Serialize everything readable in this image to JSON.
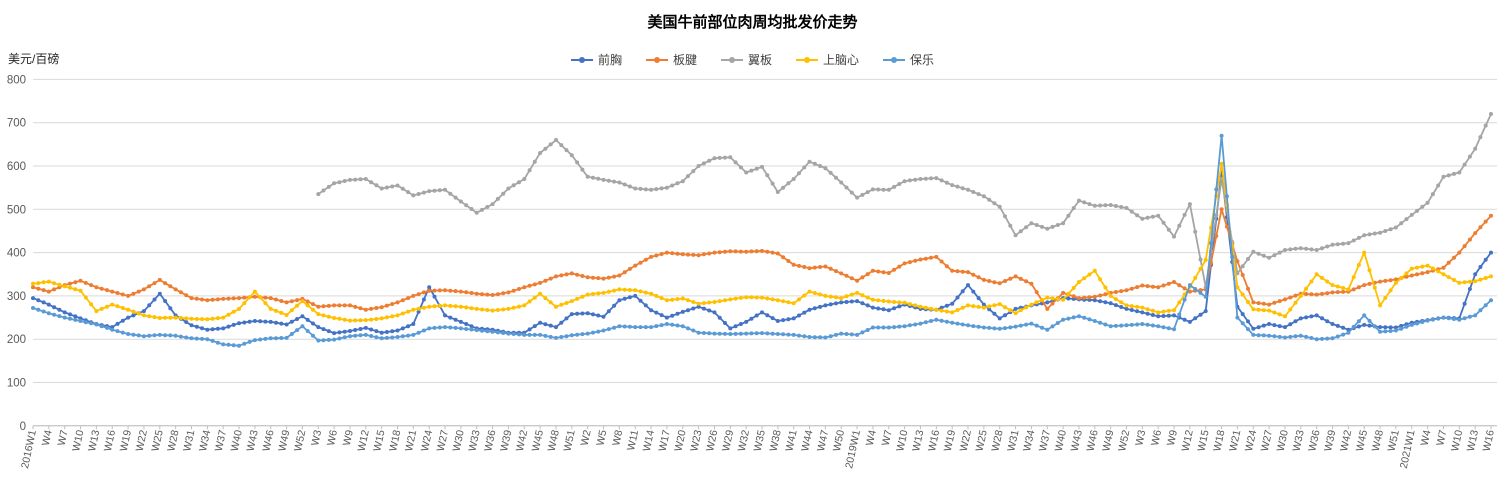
{
  "chart_data": {
    "type": "line",
    "title": "美国牛前部位肉周均批发价走势",
    "ylabel": "美元/百磅",
    "ylim": [
      0,
      800
    ],
    "yticks": [
      0,
      100,
      200,
      300,
      400,
      500,
      600,
      700,
      800
    ],
    "grid": "horizontal",
    "legend_position": "top-center",
    "categories": [
      "2016W1",
      "W4",
      "W7",
      "W10",
      "W13",
      "W16",
      "W19",
      "W22",
      "W25",
      "W28",
      "W31",
      "W34",
      "W37",
      "W40",
      "W43",
      "W46",
      "W49",
      "W52",
      "W3",
      "W6",
      "W9",
      "W12",
      "W15",
      "W18",
      "W21",
      "W24",
      "W27",
      "W30",
      "W33",
      "W36",
      "W39",
      "W42",
      "W45",
      "W48",
      "W51",
      "W2",
      "W5",
      "W8",
      "W11",
      "W14",
      "W17",
      "W20",
      "W23",
      "W26",
      "W29",
      "W32",
      "W35",
      "W38",
      "W41",
      "W44",
      "W47",
      "W50",
      "2019W1",
      "W4",
      "W7",
      "W10",
      "W13",
      "W16",
      "W19",
      "W22",
      "W25",
      "W28",
      "W31",
      "W34",
      "W37",
      "W40",
      "W43",
      "W46",
      "W49",
      "W52",
      "W3",
      "W6",
      "W9",
      "W12",
      "W15",
      "W18",
      "W21",
      "W24",
      "W27",
      "W30",
      "W33",
      "W36",
      "W39",
      "W42",
      "W45",
      "W48",
      "W51",
      "2021W1",
      "W4",
      "W7",
      "W10",
      "W13",
      "W16"
    ],
    "series": [
      {
        "name": "前胸",
        "color": "#4472C4",
        "values": [
          295,
          280,
          262,
          248,
          235,
          228,
          250,
          265,
          305,
          255,
          232,
          222,
          225,
          237,
          242,
          240,
          234,
          253,
          228,
          214,
          219,
          226,
          215,
          220,
          235,
          320,
          255,
          240,
          225,
          222,
          215,
          215,
          238,
          228,
          258,
          260,
          252,
          290,
          300,
          267,
          250,
          263,
          275,
          262,
          225,
          240,
          262,
          242,
          248,
          268,
          278,
          285,
          288,
          273,
          267,
          280,
          270,
          268,
          282,
          325,
          280,
          248,
          270,
          278,
          285,
          295,
          292,
          290,
          283,
          270,
          262,
          253,
          255,
          240,
          265,
          585,
          275,
          224,
          235,
          228,
          248,
          255,
          235,
          222,
          233,
          228,
          227,
          238,
          244,
          250,
          248,
          350,
          400
        ]
      },
      {
        "name": "板腱",
        "color": "#ED7D31",
        "values": [
          320,
          310,
          325,
          335,
          320,
          310,
          300,
          315,
          337,
          315,
          295,
          290,
          293,
          295,
          298,
          295,
          285,
          293,
          275,
          278,
          278,
          268,
          274,
          285,
          300,
          312,
          313,
          310,
          305,
          302,
          308,
          320,
          330,
          345,
          352,
          343,
          340,
          347,
          370,
          390,
          400,
          396,
          394,
          400,
          403,
          402,
          404,
          398,
          372,
          364,
          368,
          352,
          335,
          358,
          353,
          375,
          384,
          390,
          358,
          355,
          337,
          329,
          345,
          328,
          270,
          307,
          295,
          298,
          307,
          313,
          324,
          320,
          332,
          310,
          315,
          500,
          380,
          285,
          280,
          292,
          305,
          303,
          308,
          310,
          325,
          333,
          338,
          347,
          355,
          365,
          400,
          445,
          485
        ]
      },
      {
        "name": "翼板",
        "color": "#A5A5A5",
        "values": [
          null,
          null,
          null,
          null,
          null,
          null,
          null,
          null,
          null,
          null,
          null,
          null,
          null,
          null,
          null,
          null,
          null,
          null,
          535,
          560,
          568,
          570,
          548,
          555,
          532,
          542,
          545,
          518,
          492,
          512,
          548,
          570,
          630,
          660,
          625,
          575,
          568,
          562,
          548,
          545,
          550,
          565,
          600,
          618,
          620,
          585,
          598,
          540,
          570,
          610,
          595,
          562,
          527,
          546,
          545,
          565,
          570,
          572,
          556,
          545,
          530,
          506,
          440,
          468,
          455,
          468,
          520,
          508,
          510,
          503,
          478,
          485,
          437,
          512,
          320,
          570,
          352,
          402,
          388,
          406,
          410,
          406,
          418,
          422,
          440,
          446,
          458,
          487,
          515,
          575,
          585,
          640,
          720
        ]
      },
      {
        "name": "上脑心",
        "color": "#FFC000",
        "values": [
          328,
          333,
          322,
          312,
          265,
          280,
          268,
          255,
          249,
          250,
          247,
          246,
          250,
          270,
          310,
          270,
          256,
          288,
          258,
          249,
          243,
          244,
          248,
          255,
          268,
          275,
          278,
          275,
          270,
          266,
          270,
          278,
          305,
          275,
          288,
          303,
          307,
          315,
          313,
          305,
          290,
          294,
          282,
          286,
          292,
          297,
          296,
          290,
          283,
          310,
          300,
          295,
          307,
          291,
          287,
          284,
          275,
          268,
          262,
          278,
          273,
          281,
          260,
          280,
          296,
          291,
          332,
          358,
          300,
          278,
          273,
          262,
          267,
          321,
          383,
          605,
          320,
          269,
          266,
          253,
          300,
          350,
          325,
          315,
          400,
          278,
          330,
          363,
          370,
          350,
          330,
          334,
          345
        ]
      },
      {
        "name": "保乐",
        "color": "#5B9BD5",
        "values": [
          272,
          260,
          250,
          242,
          234,
          222,
          212,
          207,
          210,
          208,
          202,
          200,
          188,
          185,
          198,
          202,
          203,
          230,
          197,
          199,
          207,
          210,
          202,
          205,
          210,
          225,
          228,
          225,
          221,
          217,
          213,
          210,
          210,
          203,
          209,
          213,
          220,
          230,
          228,
          228,
          235,
          230,
          215,
          213,
          212,
          213,
          214,
          212,
          210,
          205,
          204,
          213,
          210,
          227,
          227,
          230,
          236,
          245,
          238,
          232,
          227,
          224,
          229,
          236,
          222,
          245,
          253,
          242,
          230,
          232,
          235,
          230,
          223,
          325,
          298,
          670,
          250,
          210,
          208,
          204,
          208,
          200,
          202,
          215,
          255,
          217,
          220,
          233,
          243,
          250,
          245,
          255,
          290
        ]
      }
    ]
  }
}
